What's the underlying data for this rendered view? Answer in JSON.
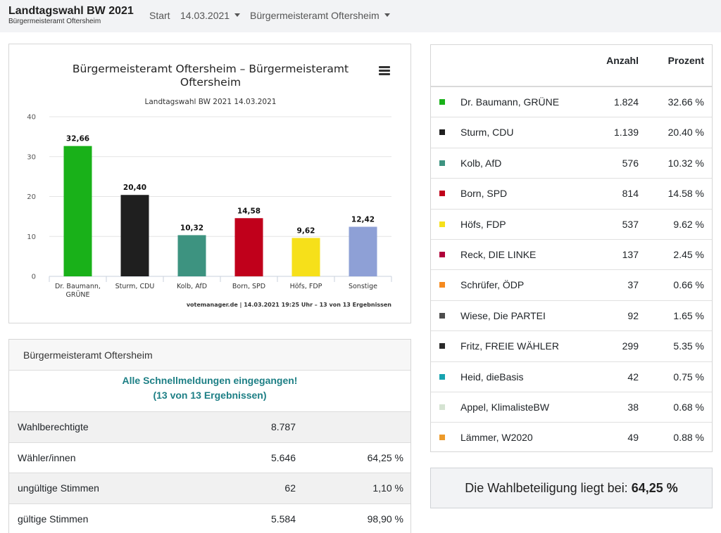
{
  "navbar": {
    "brand_title": "Landtagswahl BW 2021",
    "brand_subtitle": "Bürgermeisteramt Oftersheim",
    "start_label": "Start",
    "date_label": "14.03.2021",
    "region_label": "Bürgermeisteramt Oftersheim"
  },
  "chart": {
    "menu_icon": "hamburger-menu-icon",
    "credit": "votemanager.de | 14.03.2021 19:25 Uhr – 13 von 13 Ergebnissen"
  },
  "chart_data": {
    "type": "bar",
    "title_lines": [
      "Bürgermeisteramt Oftersheim – Bürgermeisteramt",
      "Oftersheim"
    ],
    "subtitle": "Landtagswahl BW 2021 14.03.2021",
    "categories": [
      "Dr. Baumann, GRÜNE",
      "Sturm, CDU",
      "Kolb, AfD",
      "Born, SPD",
      "Höfs, FDP",
      "Sonstige"
    ],
    "category_lines": [
      [
        "Dr. Baumann,",
        "GRÜNE"
      ],
      [
        "Sturm, CDU"
      ],
      [
        "Kolb, AfD"
      ],
      [
        "Born, SPD"
      ],
      [
        "Höfs, FDP"
      ],
      [
        "Sonstige"
      ]
    ],
    "values": [
      32.66,
      20.4,
      10.32,
      14.58,
      9.62,
      12.42
    ],
    "data_labels": [
      "32,66",
      "20,40",
      "10,32",
      "14,58",
      "9,62",
      "12,42"
    ],
    "colors": [
      "#19b119",
      "#1f1f1f",
      "#3d9380",
      "#c0001b",
      "#f6e01a",
      "#8ea0d6"
    ],
    "yticks": [
      0,
      10,
      20,
      30,
      40
    ],
    "ylim": [
      0,
      40
    ],
    "grid": true,
    "legend": "none"
  },
  "status": {
    "header": "Bürgermeisteramt Oftersheim",
    "message_line1": "Alle Schnellmeldungen eingegangen!",
    "message_line2": "(13 von 13 Ergebnissen)",
    "rows": [
      {
        "label": "Wahlberechtigte",
        "value": "8.787",
        "pct": ""
      },
      {
        "label": "Wähler/innen",
        "value": "5.646",
        "pct": "64,25 %"
      },
      {
        "label": "ungültige Stimmen",
        "value": "62",
        "pct": "1,10 %"
      },
      {
        "label": "gültige Stimmen",
        "value": "5.584",
        "pct": "98,90 %"
      }
    ]
  },
  "results": {
    "header_count": "Anzahl",
    "header_pct": "Prozent",
    "rows": [
      {
        "name": "Dr. Baumann, GRÜNE",
        "count": "1.824",
        "pct": "32.66 %",
        "color": "#19b119"
      },
      {
        "name": "Sturm, CDU",
        "count": "1.139",
        "pct": "20.40 %",
        "color": "#1f1f1f"
      },
      {
        "name": "Kolb, AfD",
        "count": "576",
        "pct": "10.32 %",
        "color": "#3d9380"
      },
      {
        "name": "Born, SPD",
        "count": "814",
        "pct": "14.58 %",
        "color": "#c0001b"
      },
      {
        "name": "Höfs, FDP",
        "count": "537",
        "pct": "9.62 %",
        "color": "#f6e01a"
      },
      {
        "name": "Reck, DIE LINKE",
        "count": "137",
        "pct": "2.45 %",
        "color": "#b0003a"
      },
      {
        "name": "Schrüfer, ÖDP",
        "count": "37",
        "pct": "0.66 %",
        "color": "#f58a1f"
      },
      {
        "name": "Wiese, Die PARTEI",
        "count": "92",
        "pct": "1.65 %",
        "color": "#4d4d4d"
      },
      {
        "name": "Fritz, FREIE WÄHLER",
        "count": "299",
        "pct": "5.35 %",
        "color": "#2a2a2a"
      },
      {
        "name": "Heid, dieBasis",
        "count": "42",
        "pct": "0.75 %",
        "color": "#17a3b0"
      },
      {
        "name": "Appel, KlimalisteBW",
        "count": "38",
        "pct": "0.68 %",
        "color": "#d5e3d2"
      },
      {
        "name": "Lämmer, W2020",
        "count": "49",
        "pct": "0.88 %",
        "color": "#ec9a2a"
      }
    ]
  },
  "turnout": {
    "label": "Die Wahlbeteiligung liegt bei:",
    "value": "64,25 %"
  }
}
